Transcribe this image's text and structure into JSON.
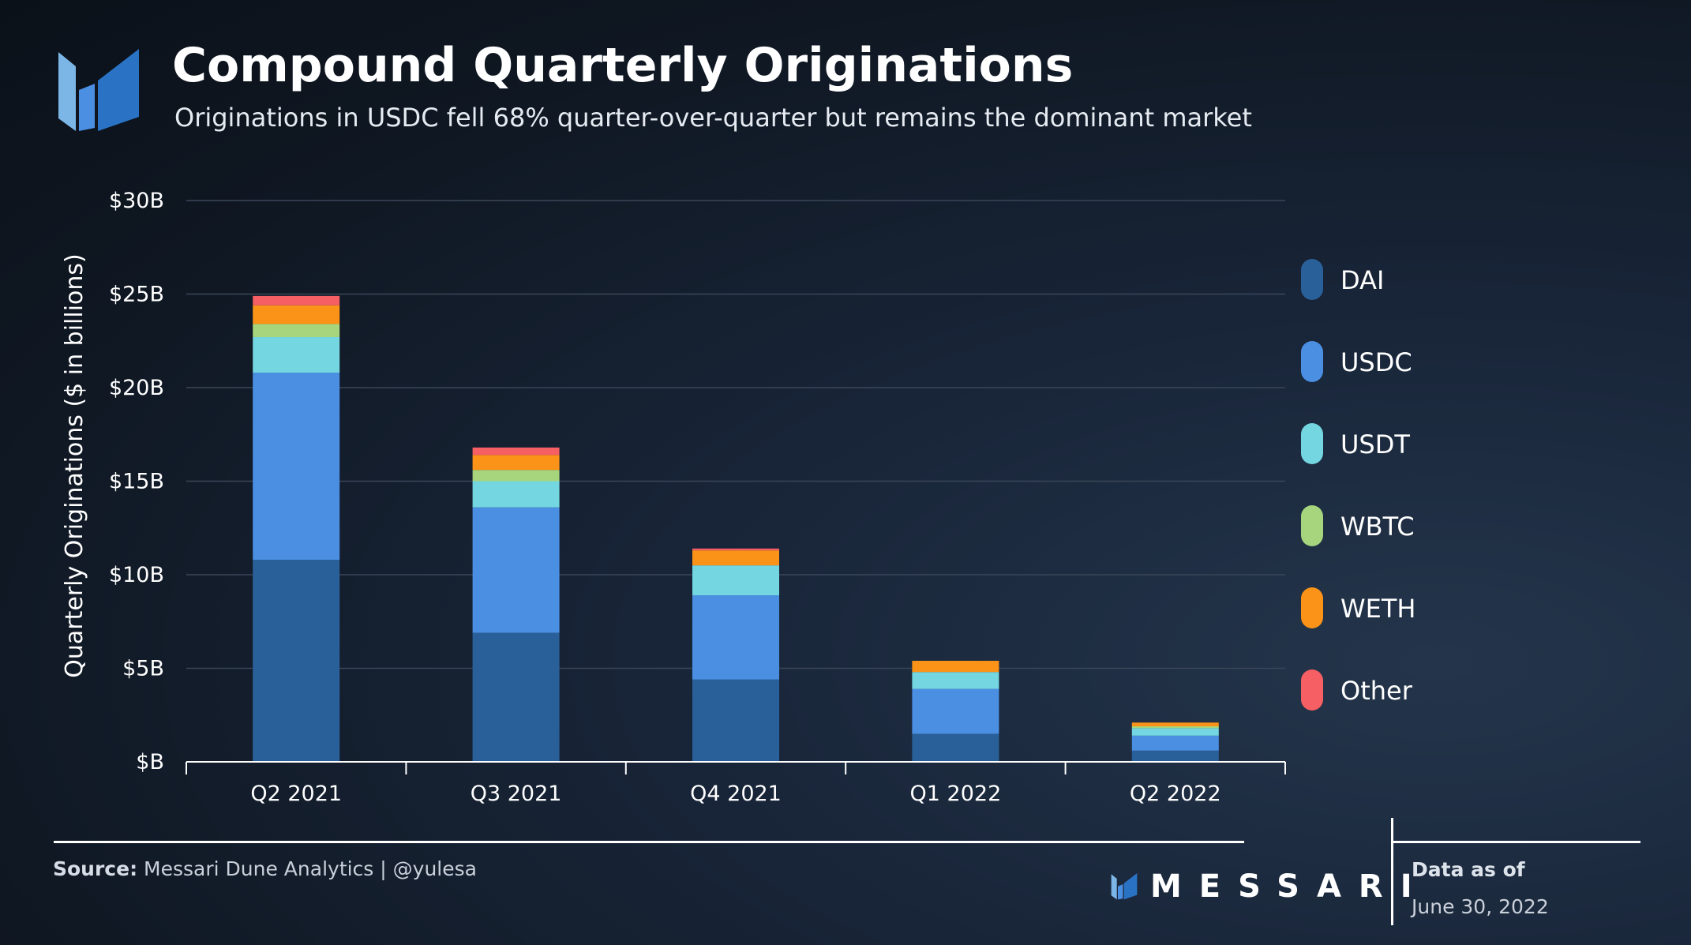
{
  "header": {
    "title": "Compound Quarterly Originations",
    "subtitle": "Originations in USDC fell 68% quarter-over-quarter but remains the dominant market"
  },
  "chart_data": {
    "type": "bar",
    "stacked": true,
    "categories": [
      "Q2 2021",
      "Q3 2021",
      "Q4 2021",
      "Q1 2022",
      "Q2 2022"
    ],
    "series": [
      {
        "name": "DAI",
        "color": "#2a6099",
        "values": [
          10.8,
          6.9,
          4.4,
          1.5,
          0.6
        ]
      },
      {
        "name": "USDC",
        "color": "#4b8fe3",
        "values": [
          10.0,
          6.7,
          4.5,
          2.4,
          0.8
        ]
      },
      {
        "name": "USDT",
        "color": "#74d6e0",
        "values": [
          1.9,
          1.4,
          1.6,
          0.9,
          0.4
        ]
      },
      {
        "name": "WBTC",
        "color": "#a6d57d",
        "values": [
          0.7,
          0.6,
          0.0,
          0.0,
          0.1
        ]
      },
      {
        "name": "WETH",
        "color": "#fb9318",
        "values": [
          1.0,
          0.8,
          0.8,
          0.6,
          0.2
        ]
      },
      {
        "name": "Other",
        "color": "#f65f63",
        "values": [
          0.5,
          0.4,
          0.1,
          0.0,
          0.0
        ]
      }
    ],
    "ylabel": "Quarterly Originations ($ in billions)",
    "ylim": [
      0,
      30
    ],
    "yticks": [
      0,
      5,
      10,
      15,
      20,
      25,
      30
    ],
    "ytick_labels": [
      "$B",
      "$5B",
      "$10B",
      "$15B",
      "$20B",
      "$25B",
      "$30B"
    ],
    "grid": true,
    "legend_position": "right"
  },
  "footer": {
    "source_label": "Source:",
    "source_text": "Messari Dune Analytics | @yulesa",
    "brand": "MESSARI",
    "data_as_of_label": "Data as of",
    "data_as_of_date": "June 30, 2022"
  }
}
